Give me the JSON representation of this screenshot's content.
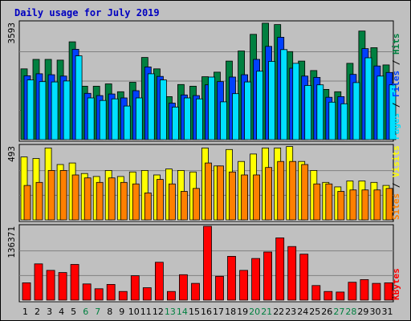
{
  "chart_data": {
    "type": "bar",
    "title": "Daily usage for July 2019",
    "categories": [
      "1",
      "2",
      "3",
      "4",
      "5",
      "6",
      "7",
      "8",
      "9",
      "10",
      "11",
      "12",
      "13",
      "14",
      "15",
      "16",
      "17",
      "18",
      "19",
      "20",
      "21",
      "22",
      "23",
      "24",
      "25",
      "26",
      "27",
      "28",
      "29",
      "30",
      "31"
    ],
    "weekend_days": [
      "6",
      "7",
      "13",
      "14",
      "20",
      "21",
      "27",
      "28"
    ],
    "colors": {
      "hits": "#008040",
      "files": "#0040ff",
      "pages": "#00e0ff",
      "visits": "#ffff00",
      "sites": "#ff8000",
      "kbytes": "#ff0000",
      "weekday_label": "#000000",
      "weekend_label": "#008040",
      "title": "#0000c0"
    },
    "panels": [
      {
        "name": "hits-files-pages",
        "ymax_label": "3593",
        "ymax": 3593,
        "legend": [
          {
            "text": "Pages",
            "color": "#00e0ff"
          },
          {
            "text": " / ",
            "color": "#000000"
          },
          {
            "text": "Files",
            "color": "#0040ff"
          },
          {
            "text": " / ",
            "color": "#000000"
          },
          {
            "text": "Hits",
            "color": "#008040"
          }
        ],
        "series": [
          {
            "name": "Hits",
            "color": "#008040",
            "values": [
              2170,
              2460,
              2460,
              2440,
              3000,
              1640,
              1640,
              1710,
              1470,
              1760,
              2520,
              2170,
              1320,
              1690,
              1640,
              1930,
              2070,
              2410,
              2720,
              3230,
              3570,
              3530,
              2700,
              2410,
              2120,
              1540,
              1470,
              2340,
              3330,
              2820,
              2290
            ]
          },
          {
            "name": "Files",
            "color": "#0040ff",
            "values": [
              1960,
              2020,
              1990,
              1950,
              2770,
              1420,
              1350,
              1400,
              1280,
              1500,
              2230,
              1940,
              1120,
              1370,
              1350,
              1680,
              1780,
              1920,
              1990,
              2460,
              2860,
              3140,
              2190,
              1950,
              1910,
              1300,
              1320,
              2000,
              2790,
              2260,
              2060
            ]
          },
          {
            "name": "Pages",
            "color": "#00e0ff",
            "values": [
              1830,
              1780,
              1770,
              1800,
              2570,
              1280,
              1200,
              1250,
              1030,
              1280,
              2020,
              1830,
              1000,
              1280,
              1250,
              1920,
              1160,
              1410,
              1770,
              2100,
              2400,
              2760,
              2340,
              1660,
              1680,
              1150,
              1100,
              1750,
              2510,
              1950,
              1680
            ]
          }
        ]
      },
      {
        "name": "visits-sites",
        "ymax_label": "493",
        "ymax": 493,
        "legend": [
          {
            "text": "Sites",
            "color": "#ff8000"
          },
          {
            "text": " / ",
            "color": "#000000"
          },
          {
            "text": "Visits",
            "color": "#ffff00"
          }
        ],
        "series": [
          {
            "name": "Visits",
            "color": "#ffff00",
            "values": [
              420,
              410,
              480,
              370,
              380,
              310,
              290,
              330,
              290,
              320,
              330,
              300,
              340,
              330,
              320,
              480,
              360,
              470,
              390,
              440,
              480,
              480,
              490,
              390,
              330,
              250,
              220,
              260,
              260,
              250,
              230
            ]
          },
          {
            "name": "Sites",
            "color": "#ff8000",
            "values": [
              230,
              250,
              330,
              330,
              300,
              280,
              250,
              280,
              250,
              240,
              180,
              270,
              240,
              190,
              210,
              380,
              360,
              320,
              300,
              300,
              350,
              390,
              390,
              370,
              240,
              240,
              190,
              200,
              200,
              200,
              210
            ]
          }
        ]
      },
      {
        "name": "kbytes",
        "ymax_label": "136371",
        "ymax": 136371,
        "legend": [
          {
            "text": "KBytes",
            "color": "#ff0000"
          }
        ],
        "series": [
          {
            "name": "KBytes",
            "color": "#ff0000",
            "values": [
              32000,
              67000,
              55000,
              51000,
              66000,
              30000,
              21000,
              29000,
              16000,
              45000,
              23000,
              70000,
              16000,
              47000,
              31000,
              136371,
              44000,
              81000,
              55000,
              77000,
              89000,
              115000,
              99000,
              85000,
              27000,
              16000,
              15000,
              33000,
              38000,
              31000,
              32000
            ]
          }
        ]
      }
    ]
  }
}
